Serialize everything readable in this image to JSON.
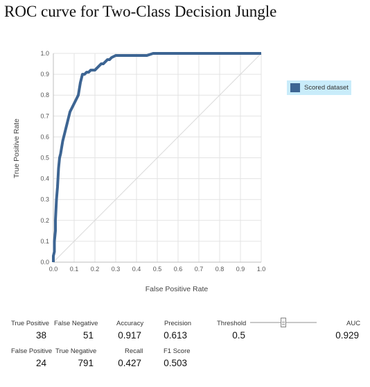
{
  "chart_data": {
    "type": "line",
    "title": "ROC curve for Two-Class Decision Jungle",
    "xlabel": "False Positive Rate",
    "ylabel": "True Positive Rate",
    "xlim": [
      0,
      1
    ],
    "ylim": [
      0,
      1
    ],
    "x_ticks": [
      "0.0",
      "0.1",
      "0.2",
      "0.3",
      "0.4",
      "0.5",
      "0.6",
      "0.7",
      "0.8",
      "0.9",
      "1.0"
    ],
    "y_ticks": [
      "0.0",
      "0.1",
      "0.2",
      "0.3",
      "0.4",
      "0.5",
      "0.6",
      "0.7",
      "0.8",
      "0.9",
      "1.0"
    ],
    "grid": true,
    "legend_position": "right",
    "series": [
      {
        "name": "Scored dataset",
        "color": "#3d6593",
        "x": [
          0.0,
          0.0,
          0.005,
          0.005,
          0.01,
          0.01,
          0.015,
          0.02,
          0.025,
          0.03,
          0.035,
          0.04,
          0.045,
          0.05,
          0.055,
          0.06,
          0.065,
          0.07,
          0.075,
          0.08,
          0.09,
          0.1,
          0.11,
          0.12,
          0.125,
          0.13,
          0.135,
          0.14,
          0.15,
          0.16,
          0.17,
          0.18,
          0.19,
          0.2,
          0.21,
          0.22,
          0.23,
          0.24,
          0.25,
          0.26,
          0.27,
          0.28,
          0.3,
          0.35,
          0.4,
          0.45,
          0.48,
          0.5,
          0.6,
          0.7,
          0.8,
          0.9,
          1.0
        ],
        "y": [
          0.0,
          0.03,
          0.05,
          0.1,
          0.15,
          0.2,
          0.3,
          0.36,
          0.45,
          0.5,
          0.52,
          0.55,
          0.58,
          0.6,
          0.62,
          0.64,
          0.66,
          0.68,
          0.7,
          0.72,
          0.74,
          0.76,
          0.78,
          0.8,
          0.83,
          0.86,
          0.88,
          0.9,
          0.9,
          0.91,
          0.91,
          0.92,
          0.92,
          0.92,
          0.93,
          0.94,
          0.95,
          0.95,
          0.96,
          0.97,
          0.97,
          0.98,
          0.99,
          0.99,
          0.99,
          0.99,
          1.0,
          1.0,
          1.0,
          1.0,
          1.0,
          1.0,
          1.0
        ]
      }
    ]
  },
  "legend": {
    "label": "Scored dataset",
    "color": "#3d6593"
  },
  "metrics": {
    "true_positive": {
      "label": "True Positive",
      "value": "38"
    },
    "false_negative": {
      "label": "False Negative",
      "value": "51"
    },
    "false_positive": {
      "label": "False Positive",
      "value": "24"
    },
    "true_negative": {
      "label": "True Negative",
      "value": "791"
    },
    "accuracy": {
      "label": "Accuracy",
      "value": "0.917"
    },
    "precision": {
      "label": "Precision",
      "value": "0.613"
    },
    "recall": {
      "label": "Recall",
      "value": "0.427"
    },
    "f1_score": {
      "label": "F1 Score",
      "value": "0.503"
    },
    "threshold": {
      "label": "Threshold",
      "value": "0.5",
      "slider_fraction": 0.5
    },
    "auc": {
      "label": "AUC",
      "value": "0.929"
    }
  }
}
